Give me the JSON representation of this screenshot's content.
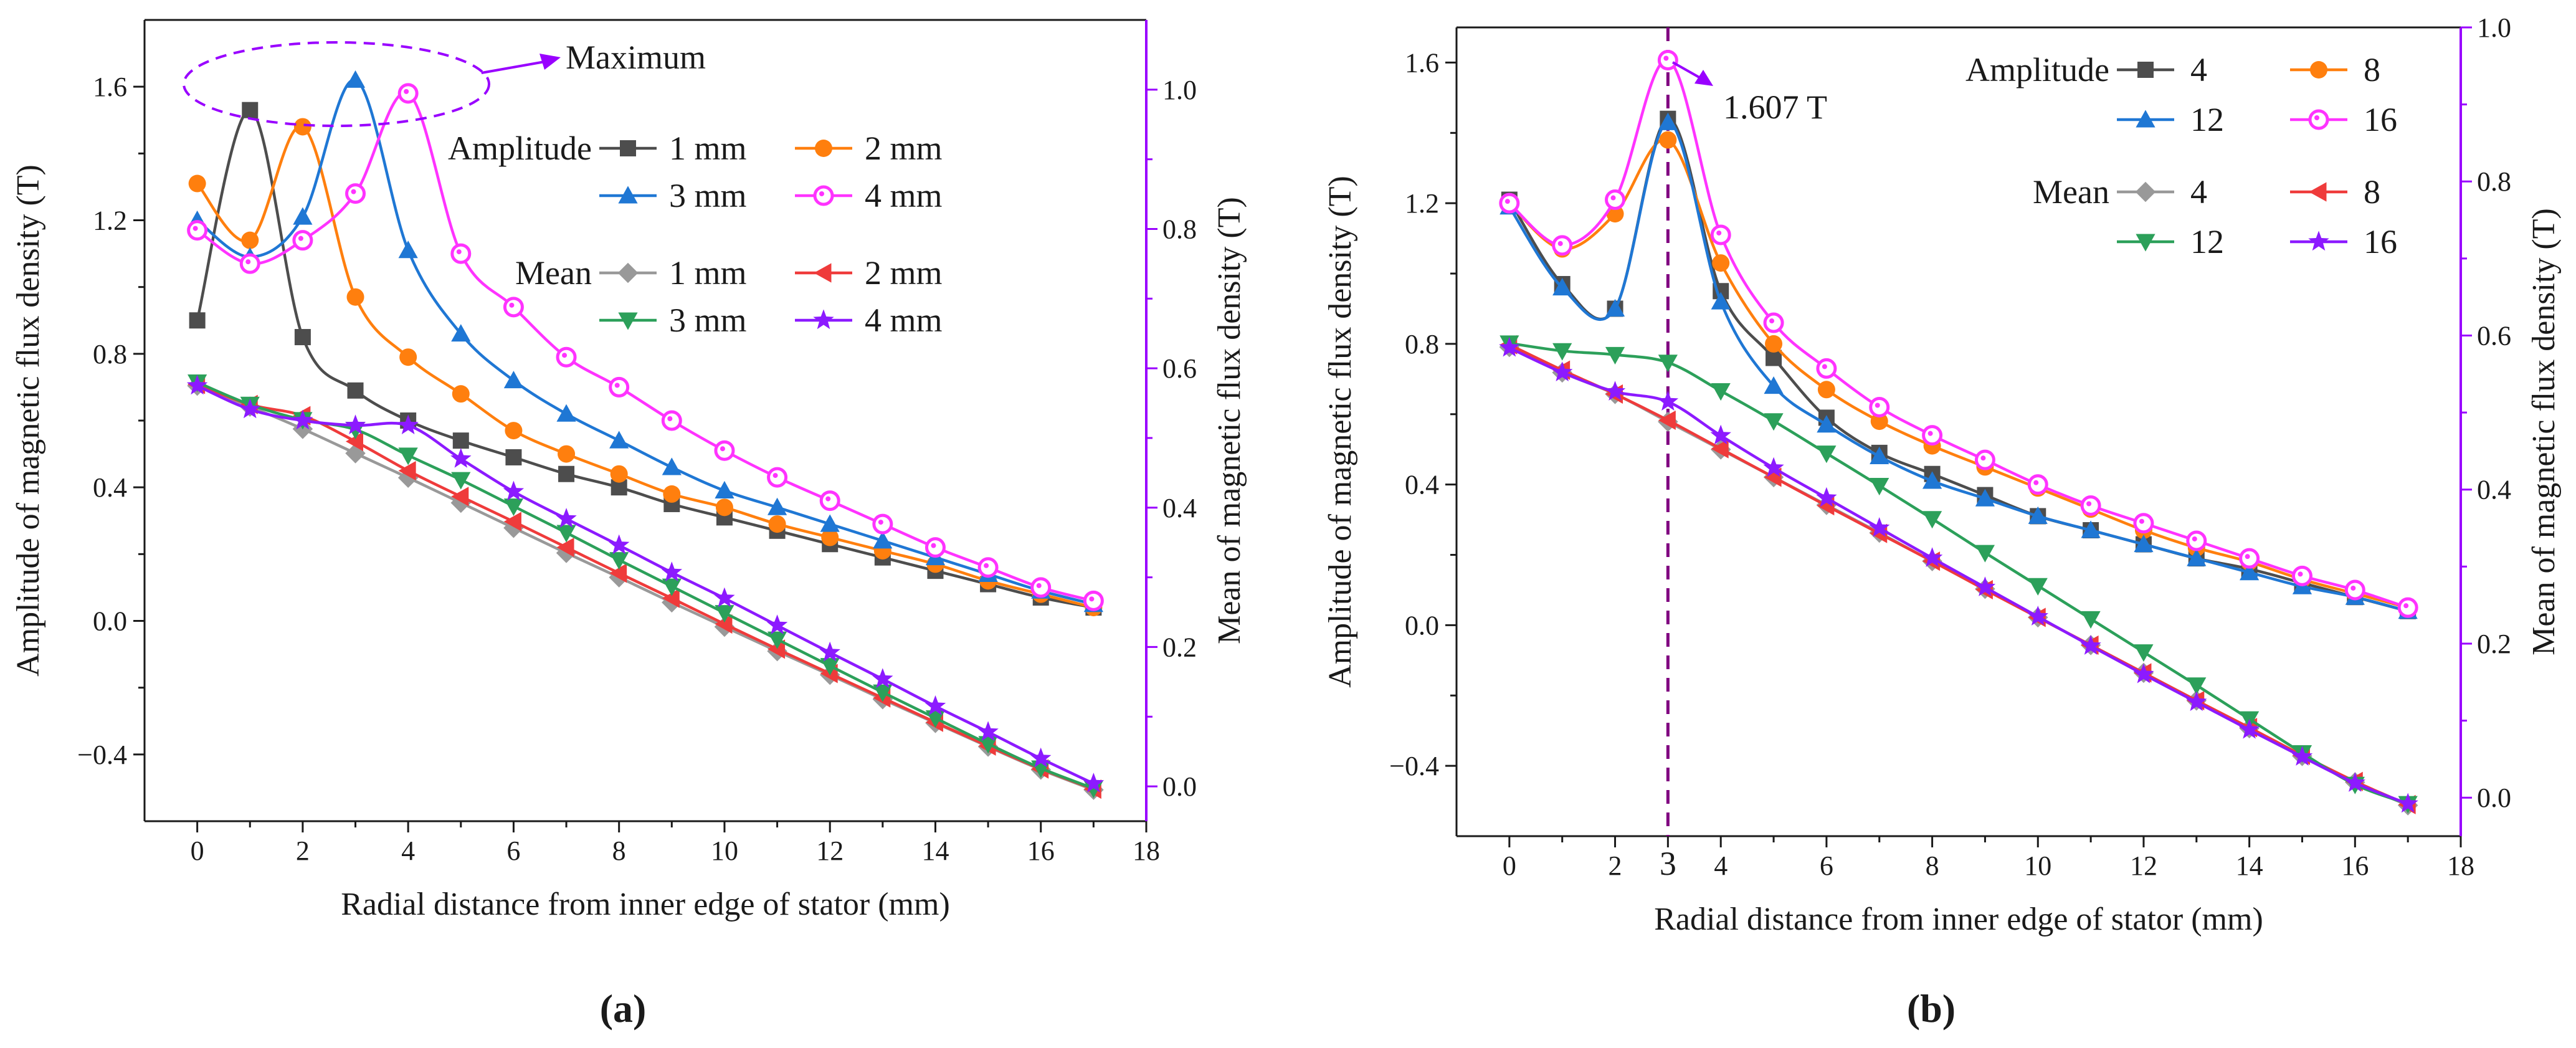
{
  "chart_data": [
    {
      "type": "line",
      "panel_label": "a",
      "panel_label_display": "(a)",
      "xlabel": "Radial distance from inner edge of stator (mm)",
      "ylabel_left": "Amplitude of magnetic flux density (T)",
      "ylabel_right": "Mean of magnetic flux density (T)",
      "xlim": [
        -1,
        18
      ],
      "ylim_left": [
        -0.6,
        1.8
      ],
      "ylim_right": [
        -0.05,
        1.1
      ],
      "x_ticks": [
        0,
        2,
        4,
        6,
        8,
        10,
        12,
        14,
        16,
        18
      ],
      "y_ticks_left": [
        -0.4,
        0.0,
        0.4,
        0.8,
        1.2,
        1.6
      ],
      "y_ticks_right": [
        0.0,
        0.2,
        0.4,
        0.6,
        0.8,
        1.0
      ],
      "annotation": {
        "text": "Maximum",
        "color": "#9900ff"
      },
      "legend_group_titles": [
        "Amplitude",
        "Mean"
      ],
      "x": [
        0,
        1,
        2,
        3,
        4,
        5,
        6,
        7,
        8,
        9,
        10,
        11,
        12,
        13,
        14,
        15,
        16,
        17
      ],
      "series": [
        {
          "group": "Amplitude",
          "name": "1 mm",
          "axis": "left",
          "color": "#4d4d4d",
          "marker": "square",
          "values": [
            0.9,
            1.53,
            0.85,
            0.69,
            0.6,
            0.54,
            0.49,
            0.44,
            0.4,
            0.35,
            0.31,
            0.27,
            0.23,
            0.19,
            0.15,
            0.11,
            0.07,
            0.04
          ]
        },
        {
          "group": "Amplitude",
          "name": "2 mm",
          "axis": "left",
          "color": "#ff7f0e",
          "marker": "circle",
          "values": [
            1.31,
            1.14,
            1.48,
            0.97,
            0.79,
            0.68,
            0.57,
            0.5,
            0.44,
            0.38,
            0.34,
            0.29,
            0.25,
            0.21,
            0.17,
            0.12,
            0.08,
            0.04
          ]
        },
        {
          "group": "Amplitude",
          "name": "3 mm",
          "axis": "left",
          "color": "#1f77d4",
          "marker": "triangle-up",
          "values": [
            1.2,
            1.09,
            1.21,
            1.62,
            1.11,
            0.86,
            0.72,
            0.62,
            0.54,
            0.46,
            0.39,
            0.34,
            0.29,
            0.24,
            0.19,
            0.14,
            0.09,
            0.05
          ]
        },
        {
          "group": "Amplitude",
          "name": "4 mm",
          "axis": "left",
          "color": "#ff33ff",
          "marker": "ring",
          "values": [
            1.17,
            1.07,
            1.14,
            1.28,
            1.58,
            1.1,
            0.94,
            0.79,
            0.7,
            0.6,
            0.51,
            0.43,
            0.36,
            0.29,
            0.22,
            0.16,
            0.1,
            0.06
          ]
        },
        {
          "group": "Mean",
          "name": "1 mm",
          "axis": "right",
          "color": "#999999",
          "marker": "diamond",
          "values": [
            0.575,
            0.545,
            0.513,
            0.478,
            0.443,
            0.407,
            0.371,
            0.335,
            0.3,
            0.264,
            0.229,
            0.194,
            0.16,
            0.125,
            0.091,
            0.057,
            0.024,
            -0.005
          ]
        },
        {
          "group": "Mean",
          "name": "2 mm",
          "axis": "right",
          "color": "#ef3b3b",
          "marker": "triangle-left",
          "values": [
            0.577,
            0.548,
            0.532,
            0.495,
            0.453,
            0.416,
            0.38,
            0.343,
            0.306,
            0.27,
            0.233,
            0.197,
            0.162,
            0.127,
            0.092,
            0.058,
            0.025,
            -0.004
          ]
        },
        {
          "group": "Mean",
          "name": "3 mm",
          "axis": "right",
          "color": "#2ca05a",
          "marker": "triangle-down",
          "values": [
            0.58,
            0.548,
            0.526,
            0.512,
            0.475,
            0.44,
            0.402,
            0.364,
            0.325,
            0.287,
            0.249,
            0.211,
            0.173,
            0.135,
            0.098,
            0.061,
            0.026,
            -0.003
          ]
        },
        {
          "group": "Mean",
          "name": "4 mm",
          "axis": "right",
          "color": "#8c1aff",
          "marker": "star",
          "values": [
            0.575,
            0.541,
            0.525,
            0.518,
            0.518,
            0.47,
            0.423,
            0.384,
            0.346,
            0.307,
            0.27,
            0.231,
            0.192,
            0.154,
            0.115,
            0.078,
            0.04,
            0.004
          ]
        }
      ]
    },
    {
      "type": "line",
      "panel_label": "b",
      "panel_label_display": "(b)",
      "xlabel": "Radial distance from inner edge of stator (mm)",
      "ylabel_left": "Amplitude of magnetic flux density (T)",
      "ylabel_right": "Mean of magnetic flux density (T)",
      "xlim": [
        -1,
        18
      ],
      "ylim_left": [
        -0.6,
        1.7
      ],
      "ylim_right": [
        -0.05,
        1.0
      ],
      "x_ticks": [
        0,
        2,
        3,
        4,
        6,
        8,
        10,
        12,
        14,
        16,
        18
      ],
      "highlight_tick": 3,
      "y_ticks_left": [
        -0.4,
        0.0,
        0.4,
        0.8,
        1.2,
        1.6
      ],
      "y_ticks_right": [
        0.0,
        0.2,
        0.4,
        0.6,
        0.8,
        1.0
      ],
      "reference_line": {
        "x": 3,
        "color": "#800080"
      },
      "annotation": {
        "text": "1.607 T",
        "color": "#9900ff"
      },
      "legend_group_titles": [
        "Amplitude",
        "Mean"
      ],
      "x": [
        0,
        1,
        2,
        3,
        4,
        5,
        6,
        7,
        8,
        9,
        10,
        11,
        12,
        13,
        14,
        15,
        16,
        17
      ],
      "series": [
        {
          "group": "Amplitude",
          "name": "4",
          "axis": "left",
          "color": "#4d4d4d",
          "marker": "square",
          "values": [
            1.21,
            0.97,
            0.9,
            1.44,
            0.95,
            0.76,
            0.59,
            0.49,
            0.43,
            0.37,
            0.31,
            0.27,
            0.23,
            0.19,
            0.16,
            0.12,
            0.08,
            0.04
          ]
        },
        {
          "group": "Amplitude",
          "name": "8",
          "axis": "left",
          "color": "#ff7f0e",
          "marker": "circle",
          "values": [
            1.2,
            1.07,
            1.17,
            1.38,
            1.03,
            0.8,
            0.67,
            0.58,
            0.51,
            0.45,
            0.39,
            0.33,
            0.27,
            0.22,
            0.18,
            0.13,
            0.09,
            0.05
          ]
        },
        {
          "group": "Amplitude",
          "name": "12",
          "axis": "left",
          "color": "#1f77d4",
          "marker": "triangle-up",
          "values": [
            1.19,
            0.96,
            0.9,
            1.43,
            0.92,
            0.68,
            0.57,
            0.48,
            0.41,
            0.36,
            0.31,
            0.27,
            0.23,
            0.19,
            0.15,
            0.11,
            0.08,
            0.04
          ]
        },
        {
          "group": "Amplitude",
          "name": "16",
          "axis": "left",
          "color": "#ff33ff",
          "marker": "ring",
          "values": [
            1.2,
            1.08,
            1.21,
            1.607,
            1.11,
            0.86,
            0.73,
            0.62,
            0.54,
            0.47,
            0.4,
            0.34,
            0.29,
            0.24,
            0.19,
            0.14,
            0.1,
            0.05
          ]
        },
        {
          "group": "Mean",
          "name": "4",
          "axis": "right",
          "color": "#999999",
          "marker": "diamond",
          "values": [
            0.585,
            0.552,
            0.524,
            0.488,
            0.452,
            0.416,
            0.38,
            0.344,
            0.307,
            0.271,
            0.234,
            0.198,
            0.162,
            0.126,
            0.09,
            0.054,
            0.02,
            -0.01
          ]
        },
        {
          "group": "Mean",
          "name": "8",
          "axis": "right",
          "color": "#ef3b3b",
          "marker": "triangle-left",
          "values": [
            0.588,
            0.555,
            0.524,
            0.49,
            0.453,
            0.416,
            0.379,
            0.343,
            0.307,
            0.27,
            0.234,
            0.198,
            0.162,
            0.126,
            0.091,
            0.055,
            0.021,
            -0.009
          ]
        },
        {
          "group": "Mean",
          "name": "12",
          "axis": "right",
          "color": "#2ca05a",
          "marker": "triangle-down",
          "values": [
            0.59,
            0.58,
            0.575,
            0.565,
            0.528,
            0.489,
            0.447,
            0.405,
            0.362,
            0.318,
            0.275,
            0.232,
            0.189,
            0.146,
            0.102,
            0.058,
            0.017,
            -0.008
          ]
        },
        {
          "group": "Mean",
          "name": "16",
          "axis": "right",
          "color": "#8c1aff",
          "marker": "star",
          "values": [
            0.584,
            0.552,
            0.527,
            0.514,
            0.47,
            0.428,
            0.389,
            0.35,
            0.311,
            0.273,
            0.235,
            0.197,
            0.16,
            0.124,
            0.088,
            0.053,
            0.019,
            -0.008
          ]
        }
      ]
    }
  ]
}
